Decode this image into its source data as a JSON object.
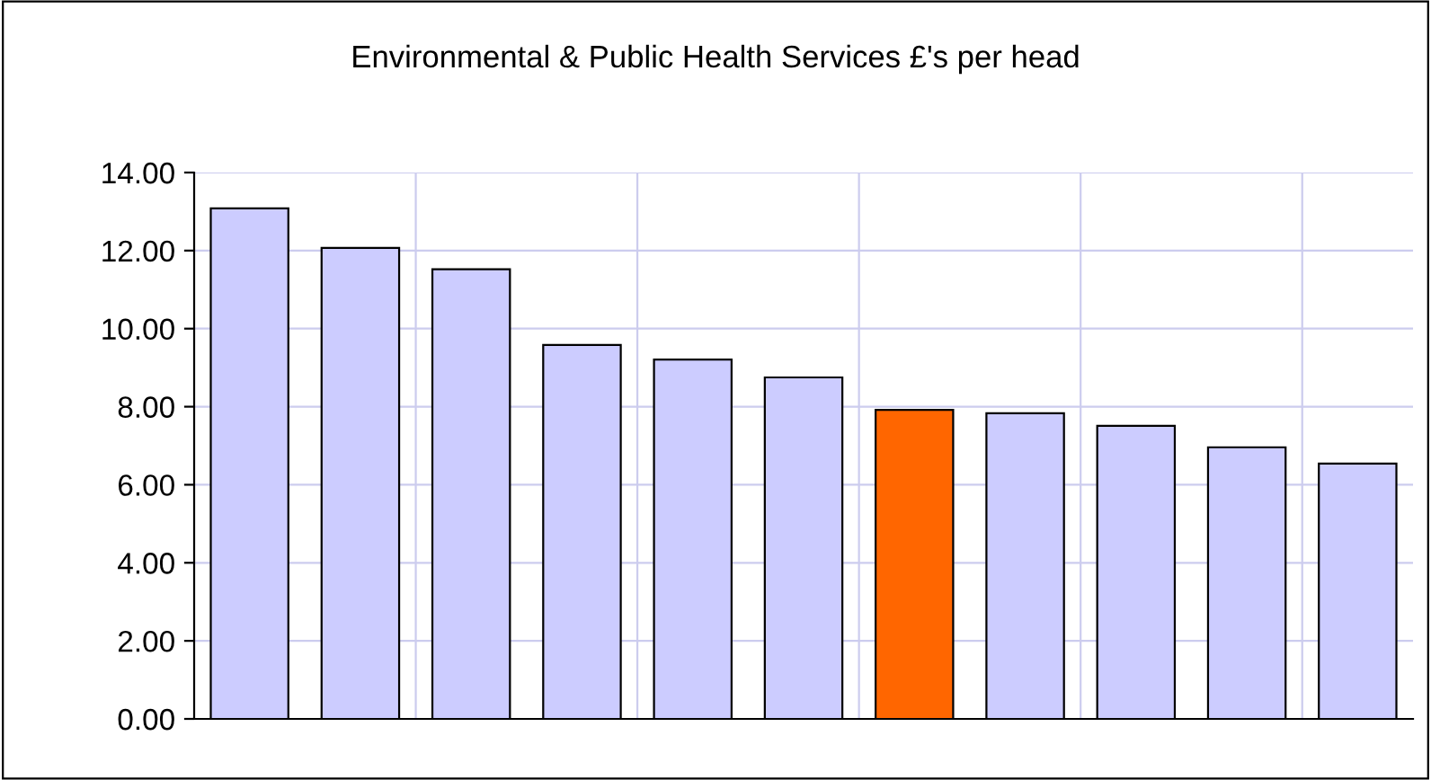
{
  "chart_data": {
    "type": "bar",
    "title": "Environmental & Public Health Services £'s per head",
    "categories": [
      null,
      null,
      null,
      null,
      null,
      null,
      null,
      null,
      null,
      null,
      null
    ],
    "values": [
      13.08,
      12.07,
      11.52,
      9.58,
      9.21,
      8.75,
      7.92,
      7.83,
      7.51,
      6.96,
      6.54
    ],
    "colors": [
      "#ccccff",
      "#ccccff",
      "#ccccff",
      "#ccccff",
      "#ccccff",
      "#ccccff",
      "#ff6600",
      "#ccccff",
      "#ccccff",
      "#ccccff",
      "#ccccff"
    ],
    "ylim": [
      0,
      14
    ],
    "yticks": [
      {
        "value": 0,
        "label": "0.00"
      },
      {
        "value": 2,
        "label": "2.00"
      },
      {
        "value": 4,
        "label": "4.00"
      },
      {
        "value": 6,
        "label": "6.00"
      },
      {
        "value": 8,
        "label": "8.00"
      },
      {
        "value": 10,
        "label": "10.00"
      },
      {
        "value": 12,
        "label": "12.00"
      },
      {
        "value": 14,
        "label": "14.00"
      }
    ],
    "grid": true,
    "legend": false
  }
}
